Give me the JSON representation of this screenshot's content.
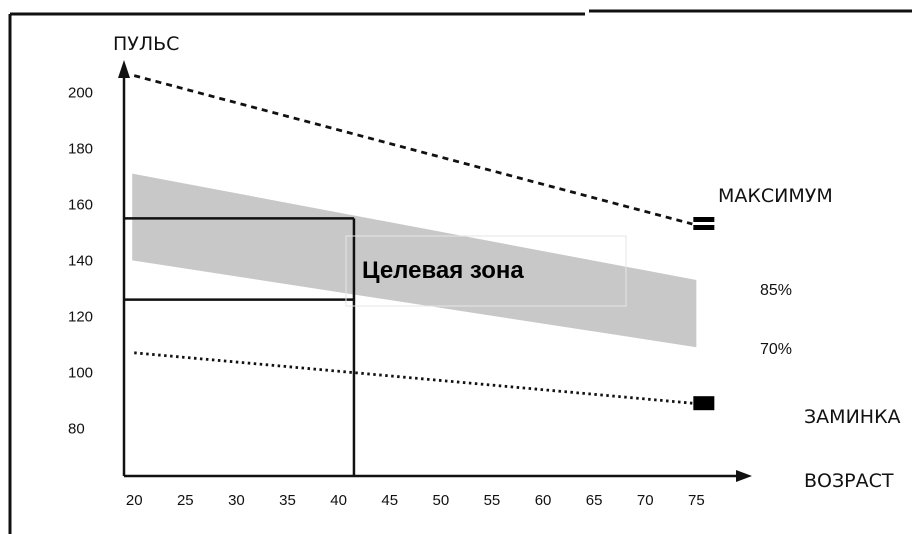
{
  "chart_data": {
    "type": "line",
    "ylabel": "ПУЛЬС",
    "xlabel": "ВОЗРАСТ",
    "x_ticks": [
      20,
      25,
      30,
      35,
      40,
      45,
      50,
      55,
      60,
      65,
      70,
      75
    ],
    "y_ticks": [
      80,
      100,
      120,
      140,
      160,
      180,
      200
    ],
    "xlim": [
      19,
      78
    ],
    "ylim": [
      63,
      208
    ],
    "grid": false,
    "series": [
      {
        "name": "МАКСИМУМ",
        "style": "dashed",
        "color": "#111111",
        "x": [
          20,
          75
        ],
        "y": [
          206,
          153
        ]
      },
      {
        "name": "ЗАМИНКА",
        "style": "dotted",
        "color": "#111111",
        "x": [
          20,
          75
        ],
        "y": [
          107,
          89
        ]
      }
    ],
    "band": {
      "upper_name": "85%",
      "lower_name": "70%",
      "color": "#c8c8c8",
      "x": [
        20,
        75
      ],
      "upper": [
        171,
        133
      ],
      "lower": [
        140,
        109
      ]
    },
    "target_zone": {
      "label": "Целевая зона",
      "age": 41.5,
      "upper": 155,
      "lower": 126
    },
    "colors": {
      "axis": "#111111",
      "band": "#c8c8c8",
      "frame": "#111111"
    }
  }
}
